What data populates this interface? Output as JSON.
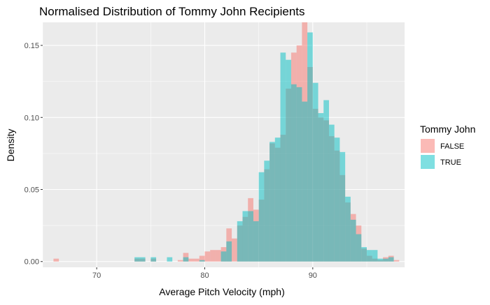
{
  "chart_data": {
    "type": "histogram",
    "title": "Normalised Distribution of Tommy John Recipients",
    "xlabel": "Average Pitch Velocity (mph)",
    "ylabel": "Density",
    "xlim": [
      65,
      98.5
    ],
    "ylim": [
      -0.004,
      0.166
    ],
    "x_ticks": [
      70,
      80,
      90
    ],
    "y_ticks": [
      0.0,
      0.05,
      0.1,
      0.15
    ],
    "x_tick_labels": [
      "70",
      "80",
      "90"
    ],
    "y_tick_labels": [
      "0.00",
      "0.05",
      "0.10",
      "0.15"
    ],
    "bin_width": 0.5,
    "grid": true,
    "legend_position": "right",
    "legend": {
      "title": "Tommy John",
      "entries": [
        "FALSE",
        "TRUE"
      ]
    },
    "colors": {
      "FALSE": "#F8766D",
      "TRUE": "#00BFC4",
      "panel": "#EBEBEB",
      "grid": "#FFFFFF"
    },
    "opacity": 0.5,
    "series": [
      {
        "name": "FALSE",
        "bins": [
          [
            66,
            0.002
          ],
          [
            73.5,
            0.002
          ],
          [
            74,
            0.002
          ],
          [
            75,
            0.002
          ],
          [
            77.5,
            0.001
          ],
          [
            78,
            0.006
          ],
          [
            78.5,
            0.002
          ],
          [
            79,
            0.002
          ],
          [
            79.5,
            0.004
          ],
          [
            80,
            0.007
          ],
          [
            80.5,
            0.008
          ],
          [
            81,
            0.008
          ],
          [
            81.5,
            0.01
          ],
          [
            82,
            0.023
          ],
          [
            82.5,
            0.016
          ],
          [
            83,
            0.025
          ],
          [
            83.5,
            0.031
          ],
          [
            84,
            0.044
          ],
          [
            84.5,
            0.036
          ],
          [
            85,
            0.043
          ],
          [
            85.5,
            0.064
          ],
          [
            86,
            0.082
          ],
          [
            86.5,
            0.079
          ],
          [
            87,
            0.088
          ],
          [
            87.5,
            0.12
          ],
          [
            88,
            0.145
          ],
          [
            88.5,
            0.15
          ],
          [
            89,
            0.166
          ],
          [
            89.5,
            0.135
          ],
          [
            90,
            0.106
          ],
          [
            90.5,
            0.1
          ],
          [
            91,
            0.098
          ],
          [
            91.5,
            0.087
          ],
          [
            92,
            0.077
          ],
          [
            92.5,
            0.06
          ],
          [
            93,
            0.041
          ],
          [
            93.5,
            0.033
          ],
          [
            94,
            0.025
          ],
          [
            94.5,
            0.009
          ],
          [
            95,
            0.004
          ],
          [
            95.5,
            0.002
          ],
          [
            96,
            0.001
          ],
          [
            96.5,
            0.003
          ],
          [
            97,
            0.004
          ],
          [
            97.5,
            0.001
          ]
        ]
      },
      {
        "name": "TRUE",
        "bins": [
          [
            73.5,
            0.003
          ],
          [
            74,
            0.003
          ],
          [
            75,
            0.003
          ],
          [
            76.5,
            0.003
          ],
          [
            78,
            0.003
          ],
          [
            79.5,
            0.001
          ],
          [
            81.5,
            0.007
          ],
          [
            82,
            0.014
          ],
          [
            83,
            0.028
          ],
          [
            83.5,
            0.035
          ],
          [
            84,
            0.035
          ],
          [
            84.5,
            0.028
          ],
          [
            85,
            0.062
          ],
          [
            85.5,
            0.07
          ],
          [
            86,
            0.083
          ],
          [
            86.5,
            0.086
          ],
          [
            87,
            0.145
          ],
          [
            87.5,
            0.14
          ],
          [
            88,
            0.123
          ],
          [
            88.5,
            0.121
          ],
          [
            89,
            0.111
          ],
          [
            89.5,
            0.159
          ],
          [
            90,
            0.124
          ],
          [
            90.5,
            0.103
          ],
          [
            91,
            0.112
          ],
          [
            91.5,
            0.095
          ],
          [
            92,
            0.086
          ],
          [
            92.5,
            0.076
          ],
          [
            93,
            0.045
          ],
          [
            93.5,
            0.029
          ],
          [
            94,
            0.019
          ],
          [
            94.5,
            0.01
          ],
          [
            95,
            0.008
          ],
          [
            95.5,
            0.008
          ],
          [
            96,
            0.002
          ],
          [
            96.5,
            0.002
          ],
          [
            97,
            0.003
          ]
        ]
      }
    ]
  }
}
